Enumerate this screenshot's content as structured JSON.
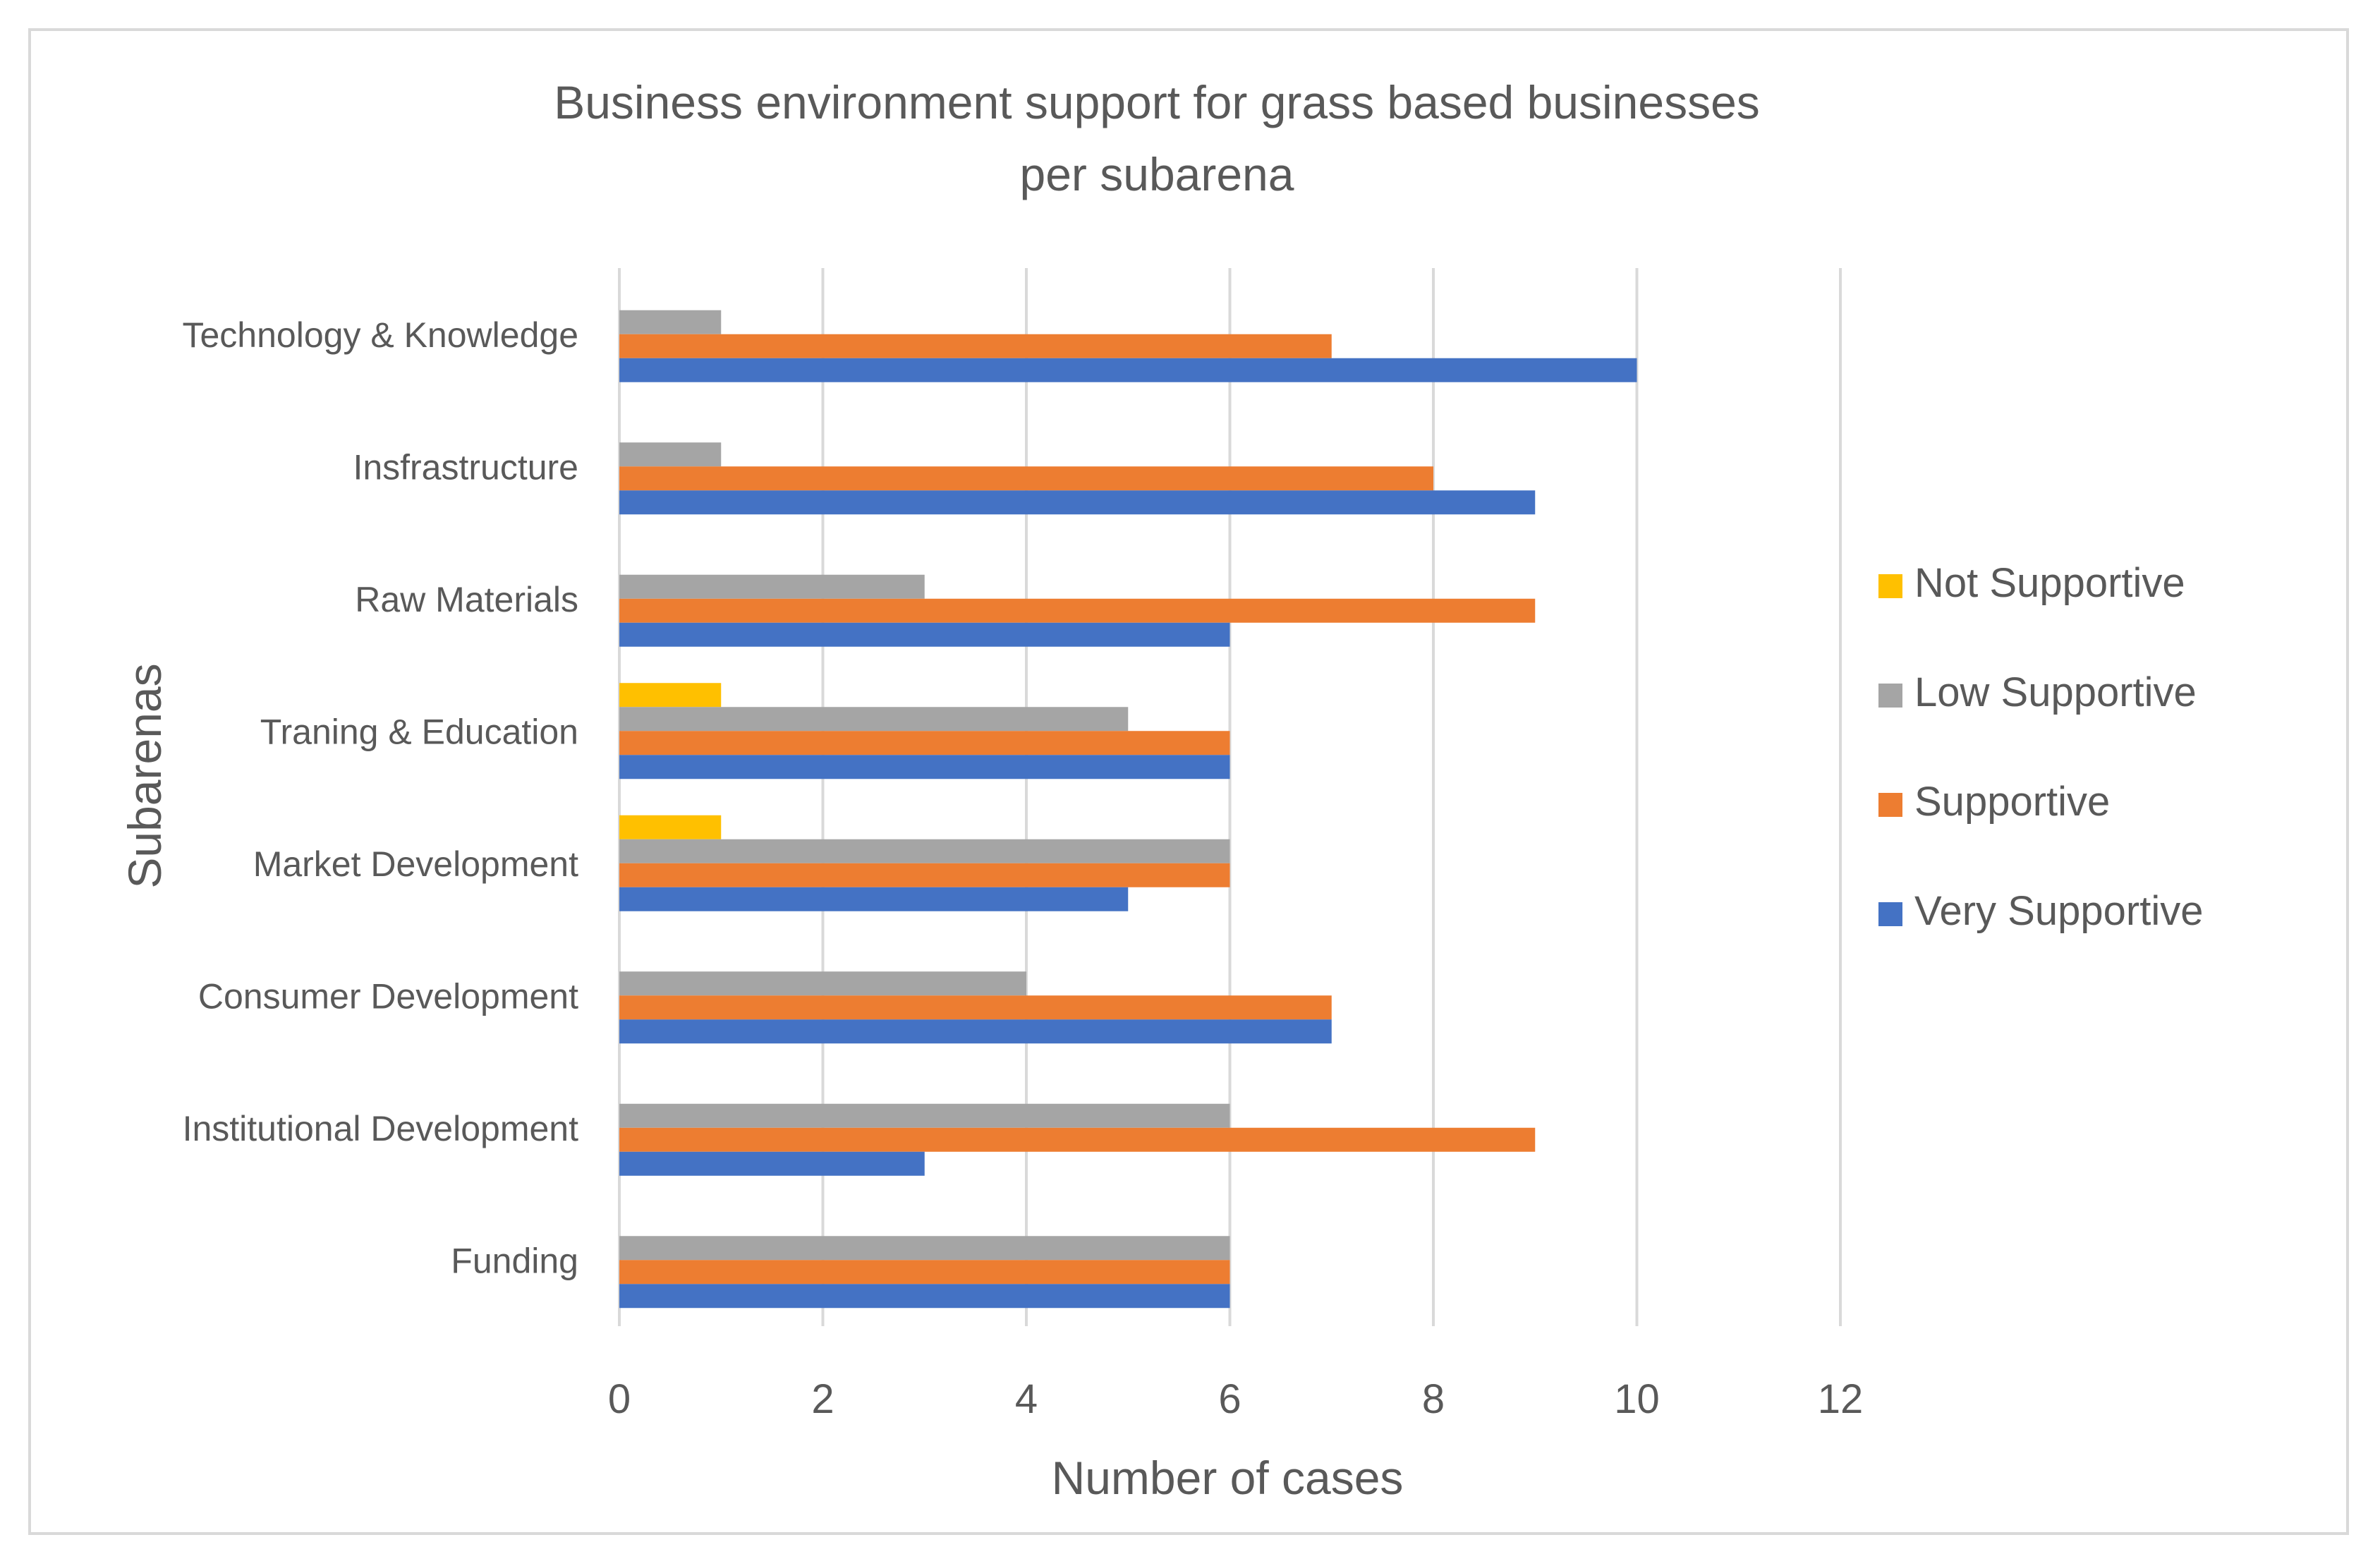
{
  "chart_data": {
    "type": "bar",
    "orientation": "horizontal",
    "title": "Business environment support for grass based businesses per subarena",
    "title_lines": [
      "Business environment support for grass based businesses",
      "per subarena"
    ],
    "xlabel": "Number of cases",
    "ylabel": "Subarenas",
    "xlim": [
      0,
      12
    ],
    "xticks": [
      0,
      2,
      4,
      6,
      8,
      10,
      12
    ],
    "grid": "vertical",
    "legend_position": "right",
    "categories": [
      "Technology & Knowledge",
      "Insfrastructure",
      "Raw Materials",
      "Traning & Education",
      "Market Development",
      "Consumer Development",
      "Institutional Development",
      "Funding"
    ],
    "series": [
      {
        "name": "Not Supportive",
        "color": "#FFC000",
        "values": [
          0,
          0,
          0,
          1,
          1,
          0,
          0,
          0
        ]
      },
      {
        "name": "Low Supportive",
        "color": "#A5A5A5",
        "values": [
          1,
          1,
          3,
          5,
          6,
          4,
          6,
          6
        ]
      },
      {
        "name": "Supportive",
        "color": "#ED7D31",
        "values": [
          7,
          8,
          9,
          6,
          6,
          7,
          9,
          6
        ]
      },
      {
        "name": "Very Supportive",
        "color": "#4472C4",
        "values": [
          10,
          9,
          6,
          6,
          5,
          7,
          3,
          6
        ]
      }
    ]
  }
}
